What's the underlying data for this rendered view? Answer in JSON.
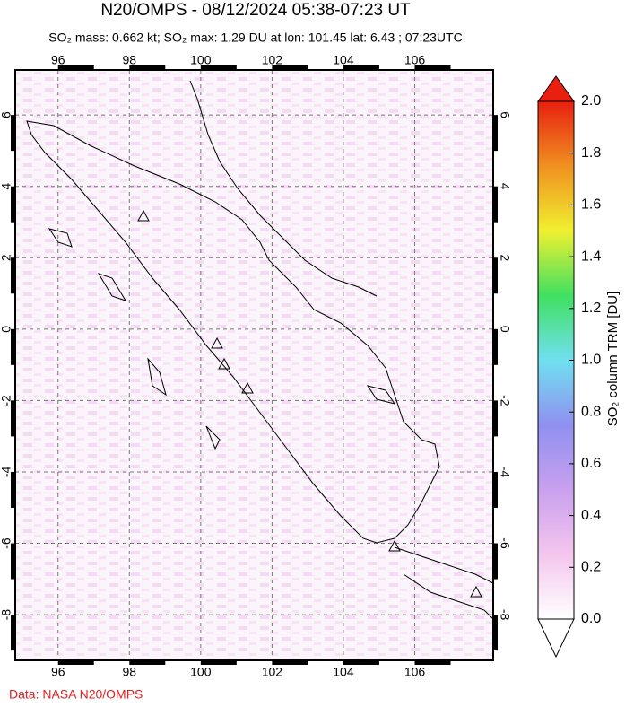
{
  "title": "N20/OMPS - 08/12/2024 05:38-07:23 UT",
  "subtitle": "SO₂ mass: 0.662 kt; SO₂ max: 1.29 DU at lon: 101.45 lat: 6.43 ; 07:23UTC",
  "map": {
    "xlim": [
      94.8,
      108.2
    ],
    "ylim": [
      -9.28,
      7.26
    ],
    "xticks": [
      96,
      98,
      100,
      102,
      104,
      106
    ],
    "yticks": [
      6,
      4,
      2,
      0,
      -2,
      -4,
      -6,
      -8
    ]
  },
  "colorbar": {
    "label": "SO₂ column TRM [DU]",
    "lim": [
      0,
      2
    ],
    "ticks": [
      {
        "value": 0,
        "label": "0.0"
      },
      0.2,
      0.4,
      0.6,
      0.8,
      {
        "value": 1,
        "label": "1.0"
      },
      1.2,
      1.4,
      1.6,
      1.8,
      {
        "value": 2,
        "label": "2.0"
      }
    ],
    "colors": [
      "#ffffff",
      "#f4c6ee",
      "#c9a0ee",
      "#9090f0",
      "#70e0f0",
      "#40e060",
      "#f0f030",
      "#f09020",
      "#e82010"
    ]
  },
  "credit": "Data: NASA N20/OMPS"
}
